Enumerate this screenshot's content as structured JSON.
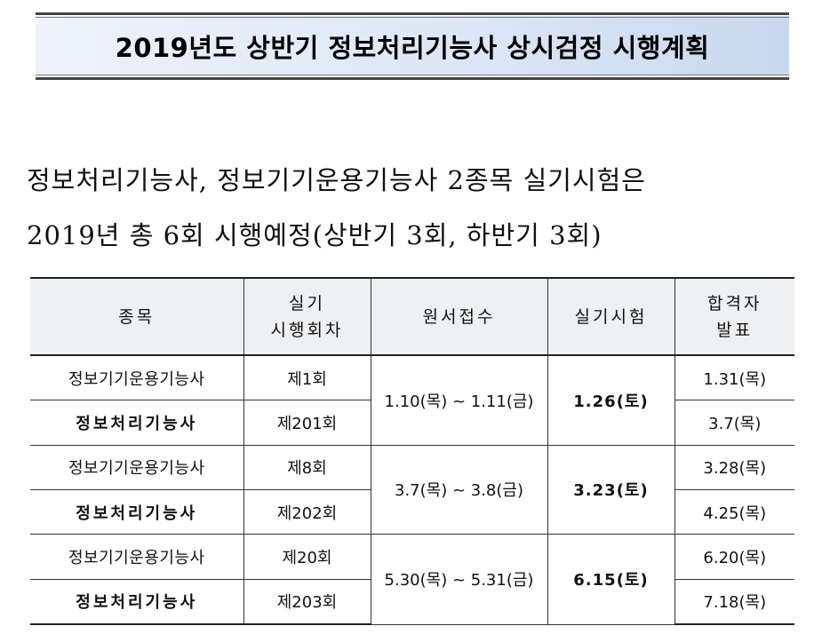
{
  "title": "2019년도 상반기 정보처리기능사 상시검정 시행계획",
  "intro": {
    "line1": "정보처리기능사, 정보기기운용기능사 2종목 실기시험은",
    "line2": "2019년 총 6회 시행예정(상반기 3회, 하반기 3회)"
  },
  "table": {
    "headers": {
      "item": "종목",
      "round_line1": "실기",
      "round_line2": "시행회차",
      "application": "원서접수",
      "exam": "실기시험",
      "result_line1": "합격자",
      "result_line2": "발표"
    },
    "groups": [
      {
        "application": "1.10(목) ~ 1.11(금)",
        "exam": "1.26(토)",
        "rows": [
          {
            "item": "정보기기운용기능사",
            "round": "제1회",
            "result": "1.31(목)",
            "highlight": false
          },
          {
            "item": "정보처리기능사",
            "round": "제201회",
            "result": "3.7(목)",
            "highlight": true
          }
        ]
      },
      {
        "application": "3.7(목) ~ 3.8(금)",
        "exam": "3.23(토)",
        "rows": [
          {
            "item": "정보기기운용기능사",
            "round": "제8회",
            "result": "3.28(목)",
            "highlight": false
          },
          {
            "item": "정보처리기능사",
            "round": "제202회",
            "result": "4.25(목)",
            "highlight": true
          }
        ]
      },
      {
        "application": "5.30(목) ~ 5.31(금)",
        "exam": "6.15(토)",
        "rows": [
          {
            "item": "정보기기운용기능사",
            "round": "제20회",
            "result": "6.20(목)",
            "highlight": false
          },
          {
            "item": "정보처리기능사",
            "round": "제203회",
            "result": "7.18(목)",
            "highlight": true
          }
        ]
      }
    ]
  },
  "colors": {
    "highlight": "#cc2222",
    "header_bg": "#eef0f2",
    "banner_bg": "#dbe6f6"
  }
}
